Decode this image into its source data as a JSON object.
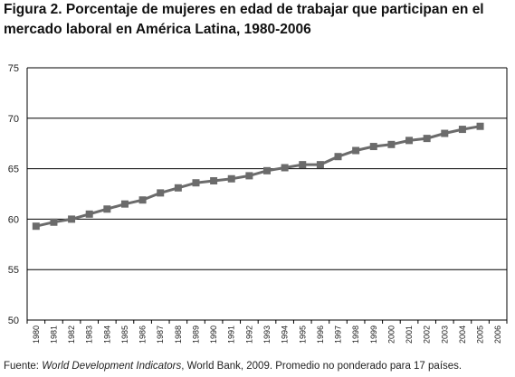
{
  "title_line1": "Figura 2. Porcentaje de mujeres en edad de trabajar que participan en el",
  "title_line2": "mercado laboral en América Latina, 1980-2006",
  "source": {
    "prefix": "Fuente: ",
    "italic": "World Development Indicators",
    "suffix": ", World Bank, 2009. Promedio no ponderado para 17 países."
  },
  "colors": {
    "series": "#6b6b6b",
    "grid": "#000000"
  },
  "chart_data": {
    "type": "line",
    "title": "Figura 2. Porcentaje de mujeres en edad de trabajar que participan en el mercado laboral en América Latina, 1980-2006",
    "xlabel": "",
    "ylabel": "",
    "ylim": [
      50,
      75
    ],
    "yticks": [
      50,
      55,
      60,
      65,
      70,
      75
    ],
    "grid": true,
    "legend": "none",
    "categories": [
      "1980",
      "1981",
      "1982",
      "1983",
      "1984",
      "1985",
      "1986",
      "1987",
      "1988",
      "1989",
      "1990",
      "1991",
      "1992",
      "1993",
      "1994",
      "1995",
      "1996",
      "1997",
      "1998",
      "1999",
      "2000",
      "2001",
      "2002",
      "2003",
      "2004",
      "2005",
      "2006"
    ],
    "series": [
      {
        "values": [
          59.3,
          59.7,
          60.0,
          60.5,
          61.0,
          61.5,
          61.9,
          62.6,
          63.1,
          63.6,
          63.8,
          64.0,
          64.3,
          64.8,
          65.1,
          65.4,
          65.4,
          66.2,
          66.8,
          67.2,
          67.4,
          67.8,
          68.0,
          68.5,
          68.9,
          69.2,
          null
        ]
      }
    ]
  }
}
